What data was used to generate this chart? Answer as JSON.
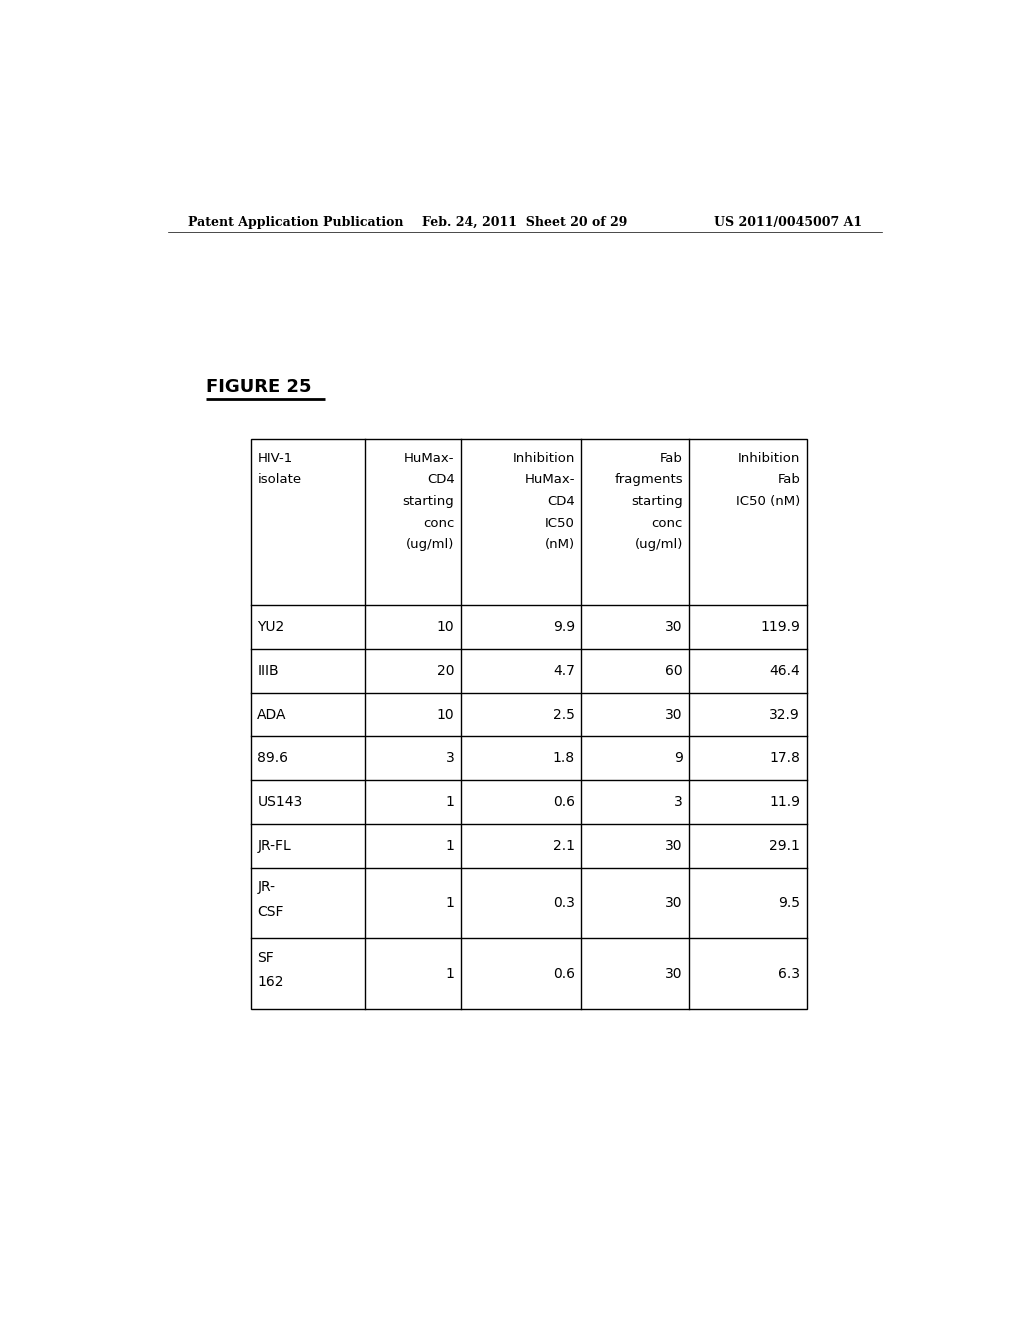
{
  "header_text_left": "Patent Application Publication",
  "header_text_mid": "Feb. 24, 2011  Sheet 20 of 29",
  "header_text_right": "US 2011/0045007 A1",
  "figure_label": "FIGURE 25",
  "table_rows": [
    [
      "YU2",
      "10",
      "9.9",
      "30",
      "119.9"
    ],
    [
      "IIIB",
      "20",
      "4.7",
      "60",
      "46.4"
    ],
    [
      "ADA",
      "10",
      "2.5",
      "30",
      "32.9"
    ],
    [
      "89.6",
      "3",
      "1.8",
      "9",
      "17.8"
    ],
    [
      "US143",
      "1",
      "0.6",
      "3",
      "11.9"
    ],
    [
      "JR-FL",
      "1",
      "2.1",
      "30",
      "29.1"
    ],
    [
      "JR-\nCSF",
      "1",
      "0.3",
      "30",
      "9.5"
    ],
    [
      "SF\n162",
      "1",
      "0.6",
      "30",
      "6.3"
    ]
  ],
  "col_alignments": [
    "left",
    "right",
    "right",
    "right",
    "right"
  ],
  "background_color": "#ffffff",
  "text_color": "#000000",
  "font_size_header": 9.5,
  "font_size_body": 10,
  "font_size_page_header": 9
}
